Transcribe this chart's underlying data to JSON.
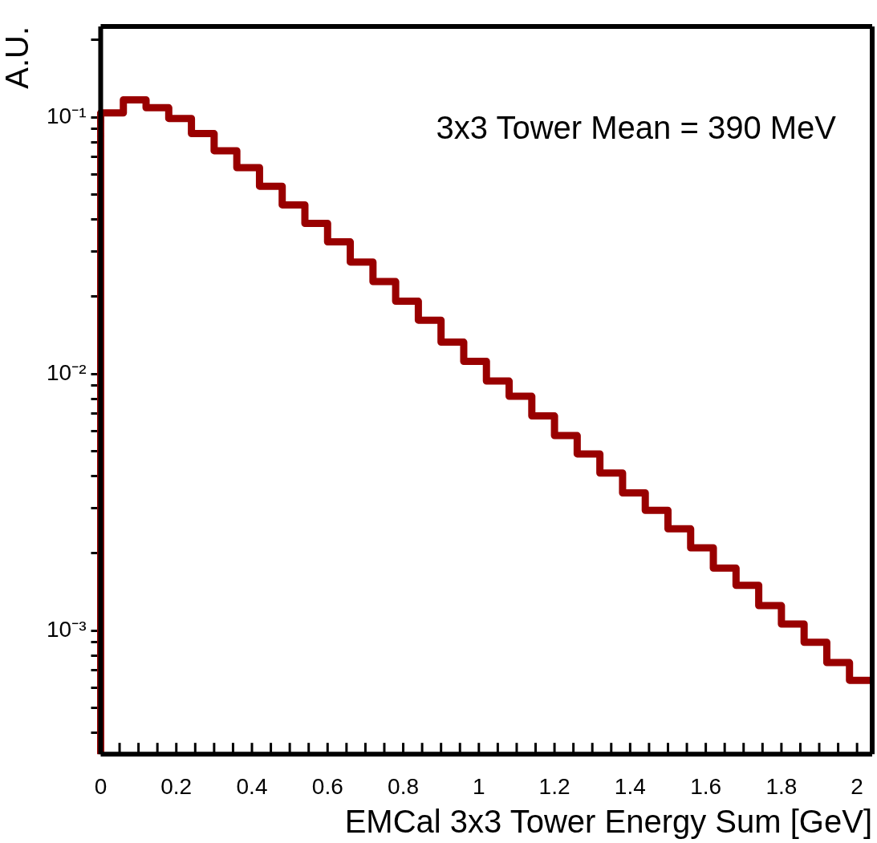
{
  "chart_data": {
    "type": "histogram",
    "xlabel": "EMCal 3x3 Tower Energy Sum [GeV]",
    "ylabel": "A.U.",
    "color": "#990000",
    "log": true,
    "annotations": [
      "3x3 Tower Mean = 390 MeV"
    ],
    "bins": [
      0,
      0.06,
      0.12,
      0.18,
      0.24,
      0.3,
      0.36,
      0.42,
      0.48,
      0.54,
      0.6,
      0.66,
      0.72,
      0.78,
      0.84,
      0.9,
      0.96,
      1.02,
      1.08,
      1.14,
      1.2,
      1.26,
      1.32,
      1.38,
      1.44,
      1.5,
      1.56,
      1.62,
      1.68,
      1.74,
      1.8,
      1.86,
      1.92,
      1.98,
      2.04
    ],
    "values": [
      0.104,
      0.117,
      0.109,
      0.099,
      0.0864,
      0.0741,
      0.0637,
      0.0539,
      0.0456,
      0.0386,
      0.0327,
      0.0273,
      0.0229,
      0.0192,
      0.0162,
      0.0133,
      0.0112,
      0.00938,
      0.00818,
      0.00686,
      0.00575,
      0.00488,
      0.00411,
      0.00344,
      0.00294,
      0.00249,
      0.0021,
      0.00175,
      0.0015,
      0.00125,
      0.00106,
      0.0009,
      0.00075,
      0.00064
    ],
    "xlim": [
      0,
      2.04
    ],
    "ylim": [
      0.00033,
      0.226
    ],
    "xticks": [
      0,
      {
        "value": 0.05,
        "label": null
      },
      {
        "value": 0.1,
        "label": null
      },
      {
        "value": 0.15,
        "label": null
      },
      0.2,
      {
        "value": 0.25,
        "label": null
      },
      {
        "value": 0.3,
        "label": null
      },
      {
        "value": 0.35,
        "label": null
      },
      0.4,
      {
        "value": 0.45,
        "label": null
      },
      {
        "value": 0.5,
        "label": null
      },
      {
        "value": 0.55,
        "label": null
      },
      0.6,
      {
        "value": 0.65,
        "label": null
      },
      {
        "value": 0.7,
        "label": null
      },
      {
        "value": 0.75,
        "label": null
      },
      0.8,
      {
        "value": 0.85,
        "label": null
      },
      {
        "value": 0.9,
        "label": null
      },
      {
        "value": 0.95,
        "label": null
      },
      1,
      {
        "value": 1.05,
        "label": null
      },
      {
        "value": 1.1,
        "label": null
      },
      {
        "value": 1.15,
        "label": null
      },
      1.2,
      {
        "value": 1.25,
        "label": null
      },
      {
        "value": 1.3,
        "label": null
      },
      {
        "value": 1.35,
        "label": null
      },
      1.4,
      {
        "value": 1.45,
        "label": null
      },
      {
        "value": 1.5,
        "label": null
      },
      {
        "value": 1.55,
        "label": null
      },
      1.6,
      {
        "value": 1.65,
        "label": null
      },
      {
        "value": 1.7,
        "label": null
      },
      {
        "value": 1.75,
        "label": null
      },
      1.8,
      {
        "value": 1.85,
        "label": null
      },
      {
        "value": 1.9,
        "label": null
      },
      {
        "value": 1.95,
        "label": null
      },
      2
    ],
    "yticks": [
      {
        "value": 0.0004,
        "label": null
      },
      {
        "value": 0.0005,
        "label": null
      },
      {
        "value": 0.0006,
        "label": null
      },
      {
        "value": 0.0007,
        "label": null
      },
      {
        "value": 0.0008,
        "label": null
      },
      {
        "value": 0.0009,
        "label": null
      },
      {
        "value": 0.001,
        "label": "10⁻³"
      },
      {
        "value": 0.002,
        "label": null
      },
      {
        "value": 0.003,
        "label": null
      },
      {
        "value": 0.004,
        "label": null
      },
      {
        "value": 0.005,
        "label": null
      },
      {
        "value": 0.006,
        "label": null
      },
      {
        "value": 0.007,
        "label": null
      },
      {
        "value": 0.008,
        "label": null
      },
      {
        "value": 0.009,
        "label": null
      },
      {
        "value": 0.01,
        "label": "10⁻²"
      },
      {
        "value": 0.02,
        "label": null
      },
      {
        "value": 0.03,
        "label": null
      },
      {
        "value": 0.04,
        "label": null
      },
      {
        "value": 0.05,
        "label": null
      },
      {
        "value": 0.06,
        "label": null
      },
      {
        "value": 0.07,
        "label": null
      },
      {
        "value": 0.08,
        "label": null
      },
      {
        "value": 0.09,
        "label": null
      },
      {
        "value": 0.1,
        "label": "10⁻¹"
      },
      {
        "value": 0.2,
        "label": null
      }
    ]
  }
}
